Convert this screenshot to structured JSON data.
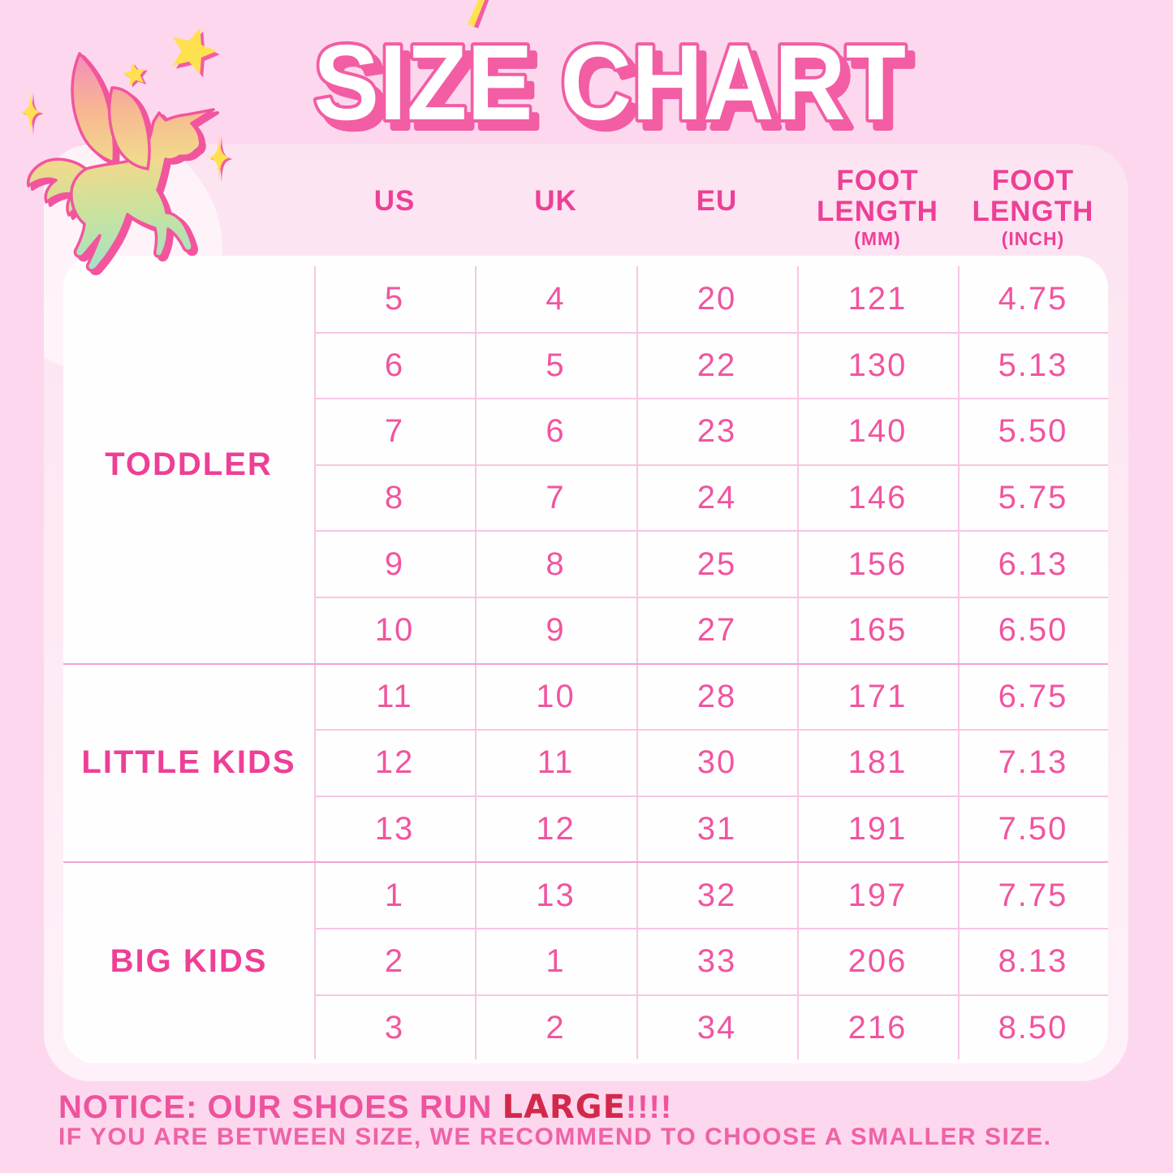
{
  "title": "SIZE CHART",
  "table": {
    "columns": [
      {
        "key": "us",
        "label": "US"
      },
      {
        "key": "uk",
        "label": "UK"
      },
      {
        "key": "eu",
        "label": "EU"
      },
      {
        "key": "mm",
        "label": "FOOT LENGTH",
        "sub": "(MM)"
      },
      {
        "key": "inch",
        "label": "FOOT LENGTH",
        "sub": "(INCH)"
      }
    ],
    "groups": [
      {
        "label": "TODDLER",
        "rows": [
          [
            "5",
            "4",
            "20",
            "121",
            "4.75"
          ],
          [
            "6",
            "5",
            "22",
            "130",
            "5.13"
          ],
          [
            "7",
            "6",
            "23",
            "140",
            "5.50"
          ],
          [
            "8",
            "7",
            "24",
            "146",
            "5.75"
          ],
          [
            "9",
            "8",
            "25",
            "156",
            "6.13"
          ],
          [
            "10",
            "9",
            "27",
            "165",
            "6.50"
          ]
        ]
      },
      {
        "label": "LITTLE KIDS",
        "rows": [
          [
            "11",
            "10",
            "28",
            "171",
            "6.75"
          ],
          [
            "12",
            "11",
            "30",
            "181",
            "7.13"
          ],
          [
            "13",
            "12",
            "31",
            "191",
            "7.50"
          ]
        ]
      },
      {
        "label": "BIG KIDS",
        "rows": [
          [
            "1",
            "13",
            "32",
            "197",
            "7.75"
          ],
          [
            "2",
            "1",
            "33",
            "206",
            "8.13"
          ],
          [
            "3",
            "2",
            "34",
            "216",
            "8.50"
          ]
        ]
      }
    ]
  },
  "notice": {
    "prefix": "NOTICE: OUR SHOES RUN ",
    "highlight": "LARGE",
    "suffix": "!!!!",
    "line2": "IF YOU ARE BETWEEN SIZE, WE RECOMMEND TO CHOOSE A SMALLER SIZE."
  },
  "decor": {
    "unicorn_icon": "unicorn-pegasus-icon",
    "star_icons": "yellow-star-icons",
    "sparkle_icons": "yellow-sparkle-icons"
  },
  "colors": {
    "background": "#FDD7EE",
    "card": "#FDE9F6",
    "table_white": "#FFFEFF",
    "accent_pink": "#EE3F96",
    "number_pink": "#F0559F",
    "title_outline": "#F25DA4",
    "highlight_red": "#D2294B",
    "star_yellow": "#FFE14F",
    "grid_line": "#F7C6E2",
    "group_line": "#F1A5D1"
  },
  "chart_data": {
    "type": "table",
    "title": "SIZE CHART",
    "columns": [
      "GROUP",
      "US",
      "UK",
      "EU",
      "FOOT LENGTH (MM)",
      "FOOT LENGTH (INCH)"
    ],
    "rows": [
      [
        "TODDLER",
        "5",
        "4",
        "20",
        "121",
        "4.75"
      ],
      [
        "TODDLER",
        "6",
        "5",
        "22",
        "130",
        "5.13"
      ],
      [
        "TODDLER",
        "7",
        "6",
        "23",
        "140",
        "5.50"
      ],
      [
        "TODDLER",
        "8",
        "7",
        "24",
        "146",
        "5.75"
      ],
      [
        "TODDLER",
        "9",
        "8",
        "25",
        "156",
        "6.13"
      ],
      [
        "TODDLER",
        "10",
        "9",
        "27",
        "165",
        "6.50"
      ],
      [
        "LITTLE KIDS",
        "11",
        "10",
        "28",
        "171",
        "6.75"
      ],
      [
        "LITTLE KIDS",
        "12",
        "11",
        "30",
        "181",
        "7.13"
      ],
      [
        "LITTLE KIDS",
        "13",
        "12",
        "31",
        "191",
        "7.50"
      ],
      [
        "BIG KIDS",
        "1",
        "13",
        "32",
        "197",
        "7.75"
      ],
      [
        "BIG KIDS",
        "2",
        "1",
        "33",
        "206",
        "8.13"
      ],
      [
        "BIG KIDS",
        "3",
        "2",
        "34",
        "216",
        "8.50"
      ]
    ],
    "notes": "NOTICE: OUR SHOES RUN LARGE!!!! IF YOU ARE BETWEEN SIZE, WE RECOMMEND TO CHOOSE A SMALLER SIZE."
  }
}
